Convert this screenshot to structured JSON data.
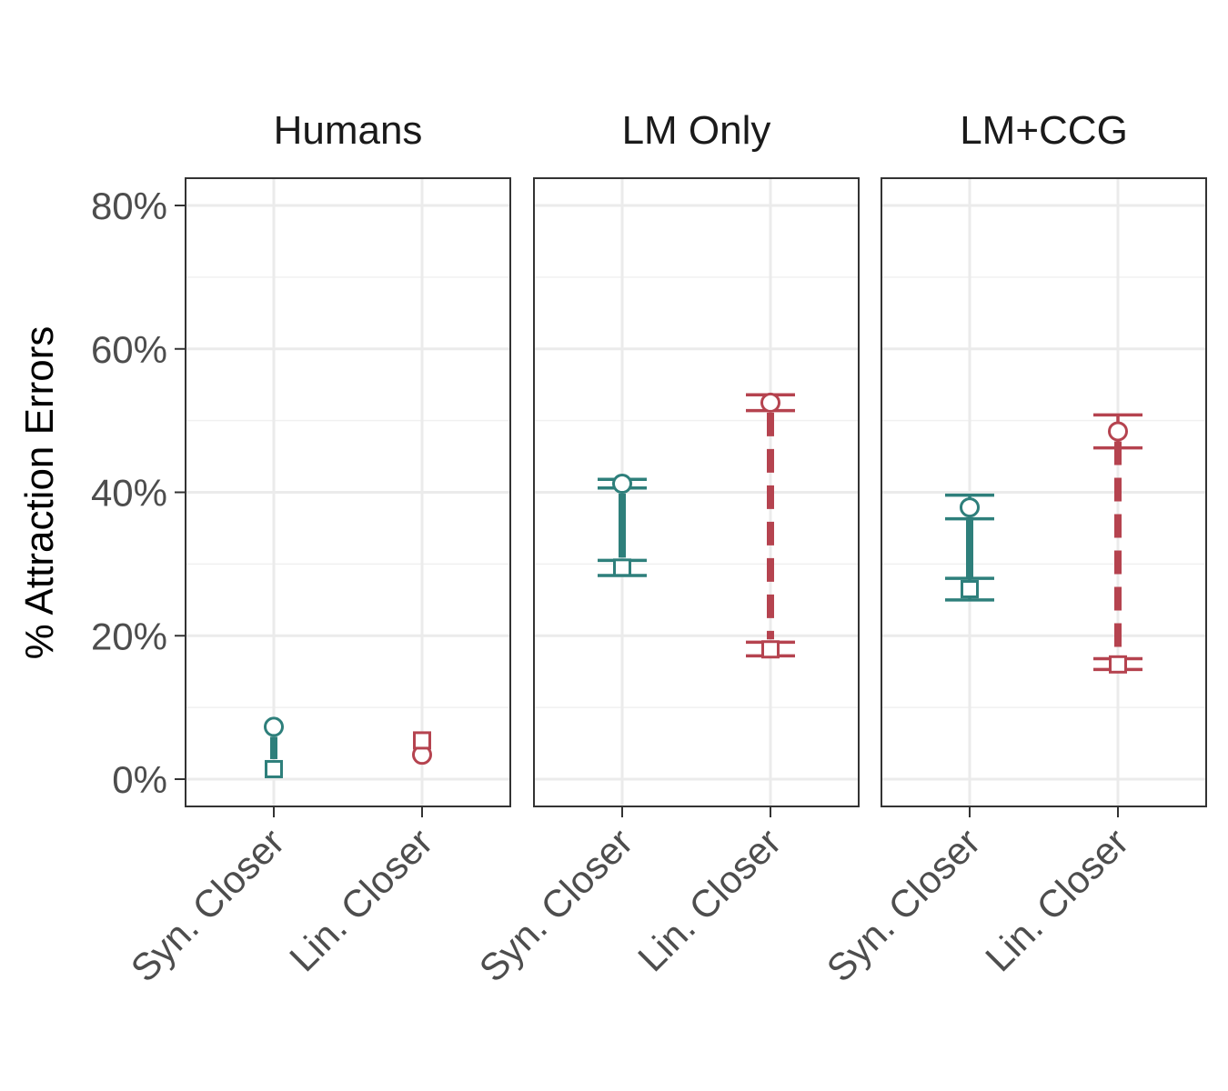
{
  "chart_data": {
    "type": "scatter",
    "ylabel": "% Attraction Errors",
    "xlabel": "",
    "ylim": [
      -4,
      84
    ],
    "y_ticks": [
      0,
      20,
      40,
      60,
      80
    ],
    "y_tick_labels": [
      "0%",
      "20%",
      "40%",
      "60%",
      "80%"
    ],
    "categories": [
      "Syn. Closer",
      "Lin. Closer"
    ],
    "grid": true,
    "colors": {
      "Syn. Closer": "#2e7f7b",
      "Lin. Closer": "#b5434f"
    },
    "facets": [
      {
        "title": "Humans",
        "groups": [
          {
            "category": "Syn. Closer",
            "circle": {
              "value": 7.3
            },
            "square": {
              "value": 1.4
            }
          },
          {
            "category": "Lin. Closer",
            "circle": {
              "value": 3.4
            },
            "square": {
              "value": 5.4
            }
          }
        ]
      },
      {
        "title": "LM Only",
        "groups": [
          {
            "category": "Syn. Closer",
            "circle": {
              "value": 41.2,
              "lo": 40.6,
              "hi": 41.8
            },
            "square": {
              "value": 29.5,
              "lo": 28.4,
              "hi": 30.5
            }
          },
          {
            "category": "Lin. Closer",
            "circle": {
              "value": 52.5,
              "lo": 51.4,
              "hi": 53.6
            },
            "square": {
              "value": 18.1,
              "lo": 17.2,
              "hi": 19.1
            }
          }
        ]
      },
      {
        "title": "LM+CCG",
        "groups": [
          {
            "category": "Syn. Closer",
            "circle": {
              "value": 37.9,
              "lo": 36.3,
              "hi": 39.6
            },
            "square": {
              "value": 26.5,
              "lo": 25.0,
              "hi": 28.0
            }
          },
          {
            "category": "Lin. Closer",
            "circle": {
              "value": 48.5,
              "lo": 46.2,
              "hi": 50.8
            },
            "square": {
              "value": 16.0,
              "lo": 15.3,
              "hi": 16.8
            }
          }
        ]
      }
    ]
  }
}
